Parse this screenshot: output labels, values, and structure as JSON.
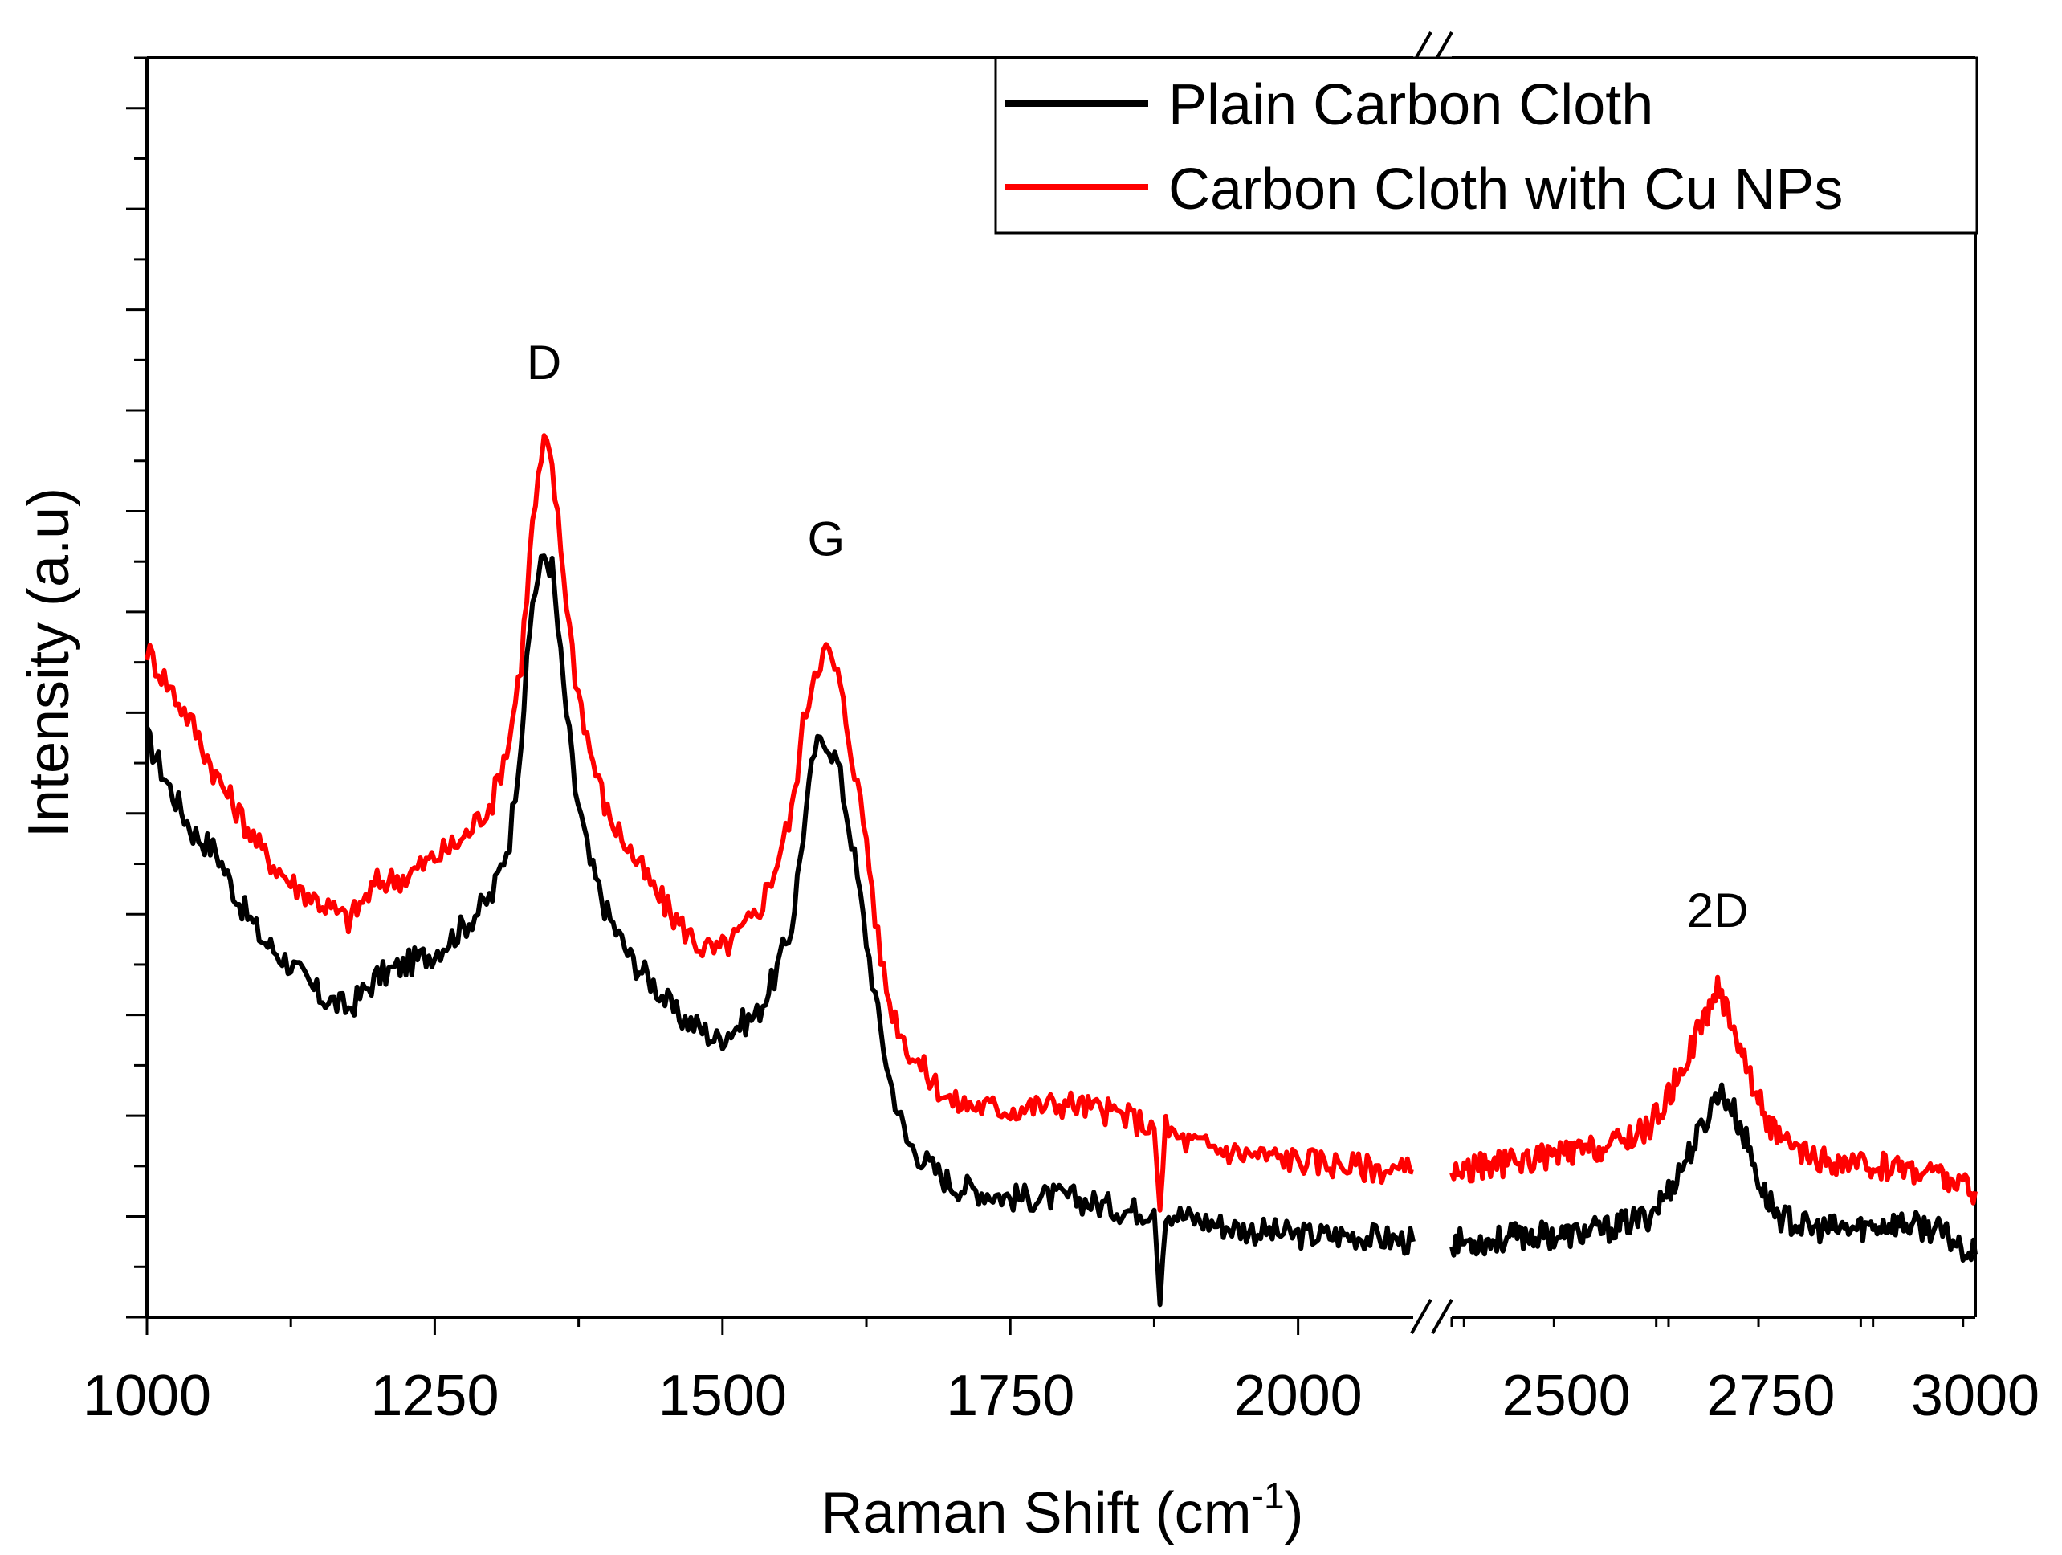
{
  "chart_data": {
    "type": "line",
    "title": "",
    "xlabel": "Raman Shift (cm",
    "xlabel_sup": "-1",
    "xlabel_close": ")",
    "ylabel": "Intensity (a.u)",
    "x_break": true,
    "x_segments": [
      {
        "range": [
          1000,
          2100
        ],
        "ticks": [
          1000,
          1250,
          1500,
          1750,
          2000
        ],
        "tick_labels": [
          "1000",
          "1250",
          "1500",
          "1750",
          "2000"
        ]
      },
      {
        "range": [
          2360,
          3000
        ],
        "ticks": [
          2500,
          2750,
          3000
        ],
        "tick_labels": [
          "2500",
          "2750",
          "3000"
        ]
      }
    ],
    "ylim": [
      0,
      100
    ],
    "y_tick_labels_shown": false,
    "legend": {
      "position": "top-right"
    },
    "series": [
      {
        "name": "Plain Carbon Cloth",
        "color": "#000000",
        "points": [
          [
            1000,
            46
          ],
          [
            1020,
            42
          ],
          [
            1040,
            38.5
          ],
          [
            1060,
            37
          ],
          [
            1080,
            33
          ],
          [
            1100,
            30
          ],
          [
            1125,
            28
          ],
          [
            1150,
            25.5
          ],
          [
            1175,
            24.5
          ],
          [
            1200,
            27
          ],
          [
            1225,
            28
          ],
          [
            1250,
            29
          ],
          [
            1275,
            31
          ],
          [
            1300,
            33.5
          ],
          [
            1315,
            38
          ],
          [
            1325,
            46
          ],
          [
            1335,
            57
          ],
          [
            1345,
            60.5
          ],
          [
            1352,
            59.5
          ],
          [
            1362,
            50
          ],
          [
            1372,
            42
          ],
          [
            1385,
            36
          ],
          [
            1400,
            32
          ],
          [
            1420,
            28.5
          ],
          [
            1440,
            26.5
          ],
          [
            1460,
            24
          ],
          [
            1480,
            23
          ],
          [
            1495,
            22
          ],
          [
            1510,
            23
          ],
          [
            1530,
            24
          ],
          [
            1545,
            27
          ],
          [
            1560,
            31
          ],
          [
            1570,
            38.5
          ],
          [
            1580,
            45
          ],
          [
            1590,
            46
          ],
          [
            1600,
            44
          ],
          [
            1612,
            38
          ],
          [
            1625,
            30
          ],
          [
            1635,
            24
          ],
          [
            1645,
            19
          ],
          [
            1660,
            14
          ],
          [
            1680,
            12
          ],
          [
            1700,
            10.5
          ],
          [
            1750,
            9.5
          ],
          [
            1800,
            9.5
          ],
          [
            1850,
            8.5
          ],
          [
            1875,
            8.5
          ],
          [
            1880,
            1
          ],
          [
            1885,
            8.5
          ],
          [
            1900,
            8
          ],
          [
            1950,
            7
          ],
          [
            2000,
            6.5
          ],
          [
            2050,
            6.5
          ],
          [
            2100,
            6
          ]
        ]
      },
      {
        "name": "Carbon Cloth with Cu NPs",
        "color": "#ff0000",
        "points": [
          [
            1000,
            53
          ],
          [
            1020,
            50
          ],
          [
            1040,
            47
          ],
          [
            1060,
            43
          ],
          [
            1080,
            40
          ],
          [
            1100,
            37
          ],
          [
            1125,
            34.5
          ],
          [
            1150,
            33
          ],
          [
            1175,
            31.5
          ],
          [
            1200,
            34.5
          ],
          [
            1225,
            35
          ],
          [
            1250,
            36.5
          ],
          [
            1275,
            38
          ],
          [
            1300,
            41
          ],
          [
            1315,
            46
          ],
          [
            1325,
            52
          ],
          [
            1335,
            63
          ],
          [
            1345,
            69.5
          ],
          [
            1352,
            67.5
          ],
          [
            1362,
            59
          ],
          [
            1372,
            51
          ],
          [
            1385,
            45
          ],
          [
            1400,
            40
          ],
          [
            1420,
            37
          ],
          [
            1440,
            34
          ],
          [
            1460,
            31.5
          ],
          [
            1480,
            29.5
          ],
          [
            1495,
            29
          ],
          [
            1510,
            30
          ],
          [
            1530,
            32
          ],
          [
            1545,
            35.5
          ],
          [
            1560,
            40
          ],
          [
            1570,
            47
          ],
          [
            1580,
            51.5
          ],
          [
            1590,
            53
          ],
          [
            1600,
            51
          ],
          [
            1612,
            45
          ],
          [
            1625,
            38
          ],
          [
            1635,
            30
          ],
          [
            1645,
            25
          ],
          [
            1660,
            21.5
          ],
          [
            1680,
            19
          ],
          [
            1700,
            17
          ],
          [
            1750,
            16.5
          ],
          [
            1800,
            17
          ],
          [
            1850,
            16
          ],
          [
            1875,
            15
          ],
          [
            1880,
            8.5
          ],
          [
            1885,
            15
          ],
          [
            1900,
            14
          ],
          [
            1950,
            13
          ],
          [
            2000,
            12.5
          ],
          [
            2050,
            12
          ],
          [
            2100,
            11.5
          ]
        ]
      }
    ],
    "series_segment2": [
      {
        "name": "Plain Carbon Cloth",
        "points": [
          [
            2360,
            6
          ],
          [
            2400,
            6
          ],
          [
            2450,
            6.5
          ],
          [
            2500,
            6.5
          ],
          [
            2550,
            7
          ],
          [
            2600,
            8
          ],
          [
            2625,
            10
          ],
          [
            2650,
            13
          ],
          [
            2670,
            15.5
          ],
          [
            2685,
            18
          ],
          [
            2700,
            17
          ],
          [
            2720,
            14
          ],
          [
            2740,
            10
          ],
          [
            2760,
            8
          ],
          [
            2800,
            7
          ],
          [
            2850,
            7
          ],
          [
            2900,
            7.5
          ],
          [
            2950,
            7
          ],
          [
            3000,
            5
          ]
        ]
      },
      {
        "name": "Carbon Cloth with Cu NPs",
        "points": [
          [
            2360,
            11.5
          ],
          [
            2400,
            12
          ],
          [
            2450,
            12.5
          ],
          [
            2500,
            13
          ],
          [
            2550,
            13.5
          ],
          [
            2600,
            15
          ],
          [
            2625,
            17.5
          ],
          [
            2650,
            21
          ],
          [
            2670,
            24
          ],
          [
            2685,
            26
          ],
          [
            2700,
            24
          ],
          [
            2720,
            20
          ],
          [
            2740,
            16.5
          ],
          [
            2760,
            14
          ],
          [
            2800,
            12.5
          ],
          [
            2850,
            12
          ],
          [
            2900,
            12
          ],
          [
            2950,
            11.5
          ],
          [
            3000,
            10
          ]
        ]
      }
    ],
    "annotations": [
      {
        "text": "D",
        "x": 1345,
        "y": 74.5
      },
      {
        "text": "G",
        "x": 1590,
        "y": 60.5
      },
      {
        "text": "2D",
        "x": 2685,
        "y": 31
      }
    ]
  }
}
